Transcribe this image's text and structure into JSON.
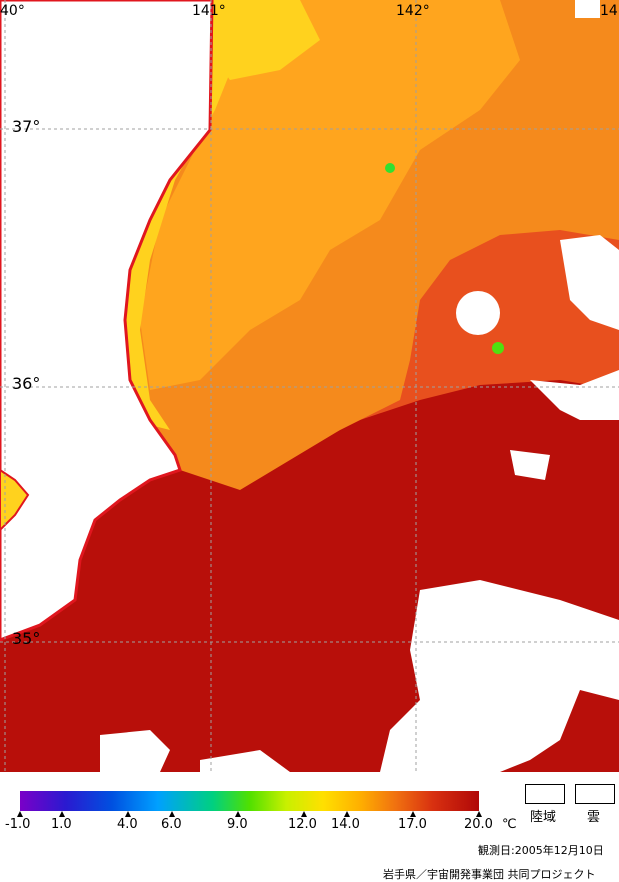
{
  "map": {
    "lon_labels": [
      "40°",
      "141°",
      "142°",
      "14"
    ],
    "lat_labels": [
      "37°",
      "36°",
      "35°"
    ],
    "colors": {
      "cold_shelf": "#ffd21e",
      "coastal": "#ffb020",
      "mid": "#f58a1c",
      "warm": "#e8501e",
      "kuroshio": "#b80f0a",
      "coastline": "#e0161e",
      "land_cloud": "#ffffff",
      "grid": "#a0a0a0"
    }
  },
  "legend": {
    "colorbar": [
      "#7a00c8",
      "#2a1ad0",
      "#0050e0",
      "#00a0ff",
      "#00d080",
      "#50e000",
      "#c8f000",
      "#ffe000",
      "#ffb000",
      "#f07010",
      "#d83010",
      "#b00808"
    ],
    "ticks": [
      "-1.0",
      "1.0",
      "4.0",
      "6.0",
      "9.0",
      "12.0",
      "14.0",
      "17.0",
      "20.0"
    ],
    "unit": "℃",
    "land_label": "陸域",
    "cloud_label": "雲",
    "observation_date": "観測日:2005年12月10日",
    "credit": "岩手県／宇宙開発事業団 共同プロジェクト"
  }
}
